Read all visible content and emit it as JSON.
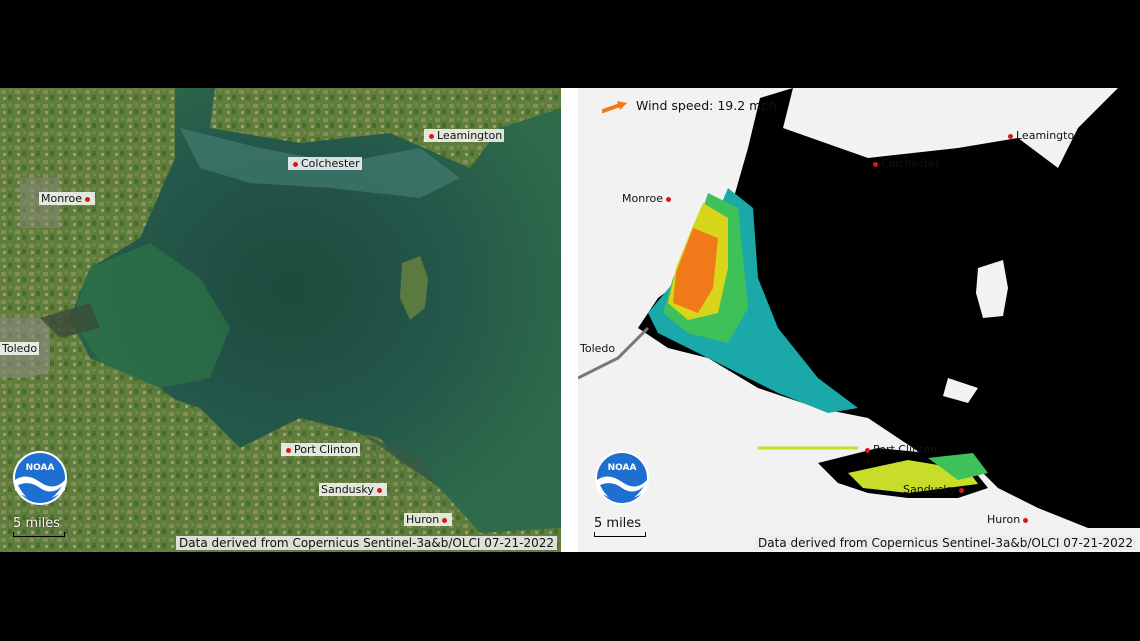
{
  "left_panel": {
    "cities": [
      {
        "label": "Leamington"
      },
      {
        "label": "Colchester"
      },
      {
        "label": "Monroe"
      },
      {
        "label": "Toledo"
      },
      {
        "label": "Port Clinton"
      },
      {
        "label": "Sandusky"
      },
      {
        "label": "Huron"
      }
    ],
    "scale_label": "5 miles",
    "credit": "Data derived from Copernicus Sentinel-3a&b/OLCI 07-21-2022",
    "logo_text": "NOAA"
  },
  "right_panel": {
    "wind_label": "Wind speed: 19.2 mph",
    "cities": [
      {
        "label": "Leamington"
      },
      {
        "label": "Colchester"
      },
      {
        "label": "Monroe"
      },
      {
        "label": "Toledo"
      },
      {
        "label": "Port Clinton"
      },
      {
        "label": "Sandusky"
      },
      {
        "label": "Huron"
      }
    ],
    "scale_label": "5 miles",
    "credit": "Data derived from Copernicus Sentinel-3a&b/OLCI 07-21-2022",
    "logo_text": "NOAA"
  },
  "colors": {
    "land_true_color": "#5a7a3a",
    "water_true_color": "#1f4a3c",
    "bloom_high": "#f07a1a",
    "bloom_mid": "#d7d61a",
    "bloom_low": "#1aa8a8",
    "no_bloom_water": "#000000",
    "land_mask": "#f2f2f2",
    "city_dot": "#d41b1b",
    "noaa_blue": "#1e6fd0"
  }
}
